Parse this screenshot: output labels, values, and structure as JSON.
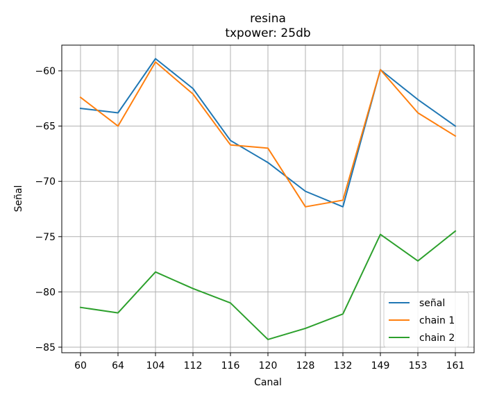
{
  "chart_data": {
    "type": "line",
    "title": "resina",
    "subtitle": "txpower: 25db",
    "xlabel": "Canal",
    "ylabel": "Señal",
    "categories": [
      "60",
      "64",
      "104",
      "112",
      "116",
      "120",
      "128",
      "132",
      "149",
      "153",
      "161"
    ],
    "ylim": [
      -85.5,
      -57.8
    ],
    "yticks": [
      -85,
      -80,
      -75,
      -70,
      -65,
      -60
    ],
    "ytick_labels": [
      "−85",
      "−80",
      "−75",
      "−70",
      "−65",
      "−60"
    ],
    "grid": true,
    "legend_position": "bottom-right",
    "series": [
      {
        "name": "señal",
        "color": "#1f77b4",
        "values": [
          -63.4,
          -63.8,
          -58.9,
          -61.6,
          -66.3,
          -68.3,
          -70.9,
          -72.3,
          -59.9,
          -62.6,
          -65.0
        ]
      },
      {
        "name": "chain 1",
        "color": "#ff7f0e",
        "values": [
          -62.4,
          -65.0,
          -59.2,
          -62.1,
          -66.7,
          -67.0,
          -72.3,
          -71.7,
          -59.9,
          -63.8,
          -65.9
        ]
      },
      {
        "name": "chain 2",
        "color": "#2ca02c",
        "values": [
          -81.4,
          -81.9,
          -78.2,
          -79.7,
          -81.0,
          -84.3,
          -83.3,
          -82.0,
          -74.8,
          -77.2,
          -74.5
        ]
      }
    ]
  }
}
